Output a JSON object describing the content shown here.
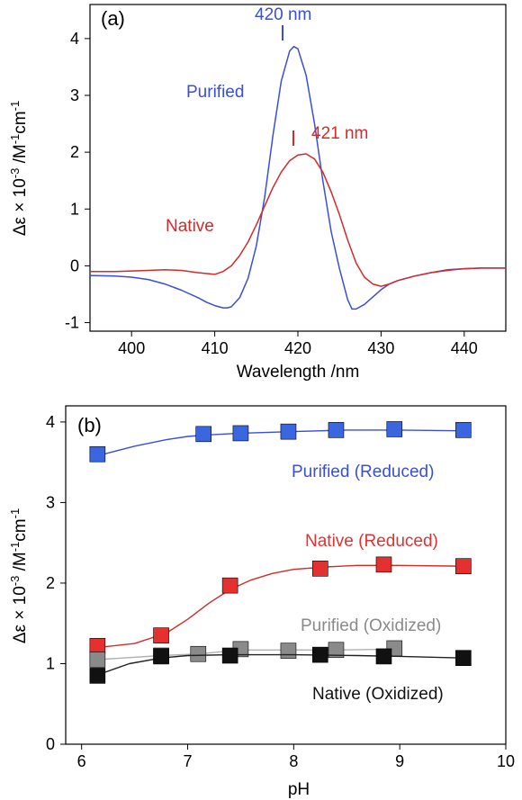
{
  "chart_data": [
    {
      "panel": "(a)",
      "type": "line",
      "xlabel": "Wavelength /nm",
      "ylabel_main": "Δε × 10",
      "ylabel_exp": "-3",
      "ylabel_unit": " /M",
      "ylabel_unit_exp": "-1",
      "ylabel_unit2": "cm",
      "ylabel_unit2_exp": "-1",
      "xlim": [
        395,
        445
      ],
      "ylim": [
        -1.15,
        4.6
      ],
      "xticks": [
        400,
        410,
        420,
        430,
        440
      ],
      "yticks": [
        -1,
        0,
        1,
        2,
        3,
        4
      ],
      "ytick_labels": [
        "-1",
        "0",
        "1",
        "2",
        "3",
        "4"
      ],
      "series": [
        {
          "name": "Purified",
          "color": "#3a4fd8",
          "x": [
            395,
            398,
            400,
            402,
            404,
            406,
            408,
            409,
            410,
            411,
            411.5,
            412,
            413,
            414,
            415,
            416,
            417,
            418,
            419,
            419.5,
            420,
            421,
            422,
            423,
            424,
            425,
            426,
            426.5,
            427,
            428,
            429,
            430,
            431,
            432,
            434,
            436,
            438,
            440,
            442,
            445
          ],
          "y": [
            -0.17,
            -0.18,
            -0.2,
            -0.24,
            -0.32,
            -0.43,
            -0.56,
            -0.64,
            -0.7,
            -0.74,
            -0.74,
            -0.72,
            -0.56,
            -0.22,
            0.35,
            1.2,
            2.3,
            3.25,
            3.78,
            3.86,
            3.82,
            3.35,
            2.5,
            1.5,
            0.6,
            -0.05,
            -0.6,
            -0.76,
            -0.76,
            -0.68,
            -0.55,
            -0.42,
            -0.32,
            -0.26,
            -0.18,
            -0.12,
            -0.07,
            -0.05,
            -0.04,
            -0.04
          ]
        },
        {
          "name": "Native",
          "color": "#d42a2a",
          "x": [
            395,
            398,
            400,
            402,
            404,
            406,
            408,
            410,
            411,
            412,
            413,
            414,
            415,
            416,
            417,
            418,
            419,
            420,
            421,
            422,
            423,
            424,
            425,
            426,
            427,
            428,
            429,
            430,
            431,
            432,
            434,
            436,
            438,
            440,
            442,
            445
          ],
          "y": [
            -0.1,
            -0.1,
            -0.09,
            -0.08,
            -0.07,
            -0.08,
            -0.12,
            -0.15,
            -0.1,
            0.0,
            0.18,
            0.42,
            0.72,
            1.05,
            1.38,
            1.65,
            1.85,
            1.95,
            1.97,
            1.88,
            1.65,
            1.3,
            0.9,
            0.45,
            0.05,
            -0.2,
            -0.32,
            -0.36,
            -0.32,
            -0.26,
            -0.18,
            -0.12,
            -0.08,
            -0.05,
            -0.04,
            -0.04
          ]
        }
      ],
      "annotations": [
        {
          "text": "420 nm",
          "x": 420,
          "y": 4.0,
          "color": "#3a4fd8"
        },
        {
          "text": "421 nm",
          "x": 421,
          "y": 2.2,
          "color": "#d42a2a"
        },
        {
          "text": "Purified",
          "color": "#3a4fd8"
        },
        {
          "text": "Native",
          "color": "#d42a2a"
        }
      ]
    },
    {
      "panel": "(b)",
      "type": "scatter",
      "xlabel": "pH",
      "ylabel_main": "Δε × 10",
      "ylabel_exp": "-3",
      "ylabel_unit": " /M",
      "ylabel_unit_exp": "-1",
      "ylabel_unit2": "cm",
      "ylabel_unit2_exp": "-1",
      "xlim": [
        5.85,
        10
      ],
      "ylim": [
        0,
        4.2
      ],
      "xticks": [
        6,
        7,
        8,
        9,
        10
      ],
      "yticks": [
        0,
        1,
        2,
        3,
        4
      ],
      "series": [
        {
          "name": "Purified (Reduced)",
          "color": "#3a66e0",
          "line_color": "#3a4fd8",
          "x": [
            6.15,
            7.15,
            7.5,
            7.95,
            8.4,
            8.95,
            9.6
          ],
          "y": [
            3.6,
            3.85,
            3.86,
            3.88,
            3.9,
            3.91,
            3.9
          ],
          "fit_x": [
            6.15,
            6.5,
            6.8,
            7.0,
            7.2,
            7.5,
            8.0,
            8.5,
            9.0,
            9.6
          ],
          "fit_y": [
            3.58,
            3.7,
            3.78,
            3.82,
            3.84,
            3.86,
            3.88,
            3.9,
            3.9,
            3.89
          ]
        },
        {
          "name": "Native (Reduced)",
          "color": "#e53030",
          "line_color": "#d42a2a",
          "x": [
            6.15,
            6.75,
            7.4,
            8.25,
            8.85,
            9.6
          ],
          "y": [
            1.22,
            1.35,
            1.97,
            2.18,
            2.23,
            2.21
          ],
          "fit_x": [
            6.15,
            6.5,
            6.8,
            7.0,
            7.2,
            7.4,
            7.6,
            7.8,
            8.0,
            8.3,
            8.6,
            9.0,
            9.6
          ],
          "fit_y": [
            1.2,
            1.25,
            1.38,
            1.55,
            1.75,
            1.92,
            2.04,
            2.12,
            2.17,
            2.2,
            2.22,
            2.22,
            2.21
          ]
        },
        {
          "name": "Purified (Oxidized)",
          "color": "#8a8a8a",
          "line_color": "#b0b0b0",
          "x": [
            6.15,
            6.75,
            7.1,
            7.5,
            7.95,
            8.4,
            8.95
          ],
          "y": [
            1.05,
            1.1,
            1.12,
            1.18,
            1.16,
            1.17,
            1.19
          ],
          "fit_x": [
            6.15,
            6.75,
            7.1,
            7.5,
            7.95,
            8.4,
            8.95
          ],
          "fit_y": [
            1.05,
            1.1,
            1.12,
            1.17,
            1.17,
            1.17,
            1.18
          ]
        },
        {
          "name": "Native (Oxidized)",
          "color": "#111111",
          "line_color": "#222222",
          "x": [
            6.15,
            6.75,
            7.4,
            8.25,
            8.85,
            9.6
          ],
          "y": [
            0.85,
            1.09,
            1.1,
            1.11,
            1.09,
            1.07
          ],
          "fit_x": [
            6.15,
            6.45,
            6.75,
            7.0,
            7.4,
            8.0,
            8.6,
            9.0,
            9.6
          ],
          "fit_y": [
            0.86,
            1.0,
            1.07,
            1.1,
            1.11,
            1.11,
            1.1,
            1.09,
            1.07
          ]
        }
      ]
    }
  ]
}
